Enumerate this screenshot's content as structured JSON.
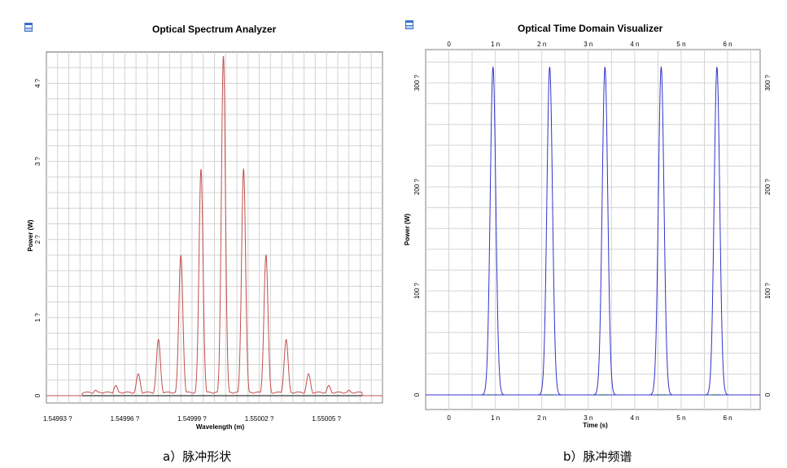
{
  "charts": [
    {
      "title": "Optical Spectrum Analyzer",
      "caption": "a）脉冲形状",
      "xlabel": "Wavelength (m)",
      "ylabel": "Power (W)",
      "xtick_labels": [
        "1.54993 ?",
        "1.54996 ?",
        "1.54999 ?",
        "1.55002 ?",
        "1.55005 ?"
      ],
      "ytick_labels": [
        "0",
        "1 ?",
        "2 ?",
        "3 ?",
        "4 ?"
      ],
      "colors": {
        "trace": "#c0504d",
        "grid": "#d3d3d3",
        "baseline": "#000000"
      }
    },
    {
      "title": "Optical Time Domain Visualizer",
      "caption": "b）脉冲频谱",
      "xlabel": "Time (s)",
      "ylabel": "Power (W)",
      "xtick_labels": [
        "0",
        "1 n",
        "2 n",
        "3 n",
        "4 n",
        "5 n",
        "6 n"
      ],
      "ytick_labels": [
        "0",
        "100 ?",
        "200 ?",
        "300 ?"
      ],
      "colors": {
        "trace": "#3333cc",
        "grid": "#d3d3d3",
        "baseline": "#228b22"
      }
    }
  ],
  "chart_data": [
    {
      "type": "line",
      "title": "Optical Spectrum Analyzer",
      "xlabel": "Wavelength (m)",
      "ylabel": "Power (W)",
      "x_unit": "µm",
      "xlim": [
        1.549925,
        1.550075
      ],
      "ylim": [
        0,
        4.4
      ],
      "grid": true,
      "series": [
        {
          "peaks_x": [
            1.549947,
            1.549956,
            1.549966,
            1.549975,
            1.549985,
            1.549994,
            1.550004,
            1.550013,
            1.550023,
            1.550032,
            1.550042,
            1.550051,
            1.55006
          ],
          "peaks_y": [
            0.07,
            0.13,
            0.28,
            0.72,
            1.8,
            2.9,
            4.35,
            2.9,
            1.8,
            0.72,
            0.28,
            0.13,
            0.07
          ],
          "floor": 0.03
        }
      ]
    },
    {
      "type": "line",
      "title": "Optical Time Domain Visualizer",
      "xlabel": "Time (s)",
      "ylabel": "Power (W)",
      "x_unit": "ns",
      "xlim": [
        -0.5,
        6.7
      ],
      "ylim": [
        -5,
        330
      ],
      "grid": true,
      "series": [
        {
          "pulse_centers": [
            0.95,
            2.17,
            3.36,
            4.57,
            5.77
          ],
          "pulse_peak": 315,
          "pulse_width": 0.06
        }
      ]
    }
  ]
}
